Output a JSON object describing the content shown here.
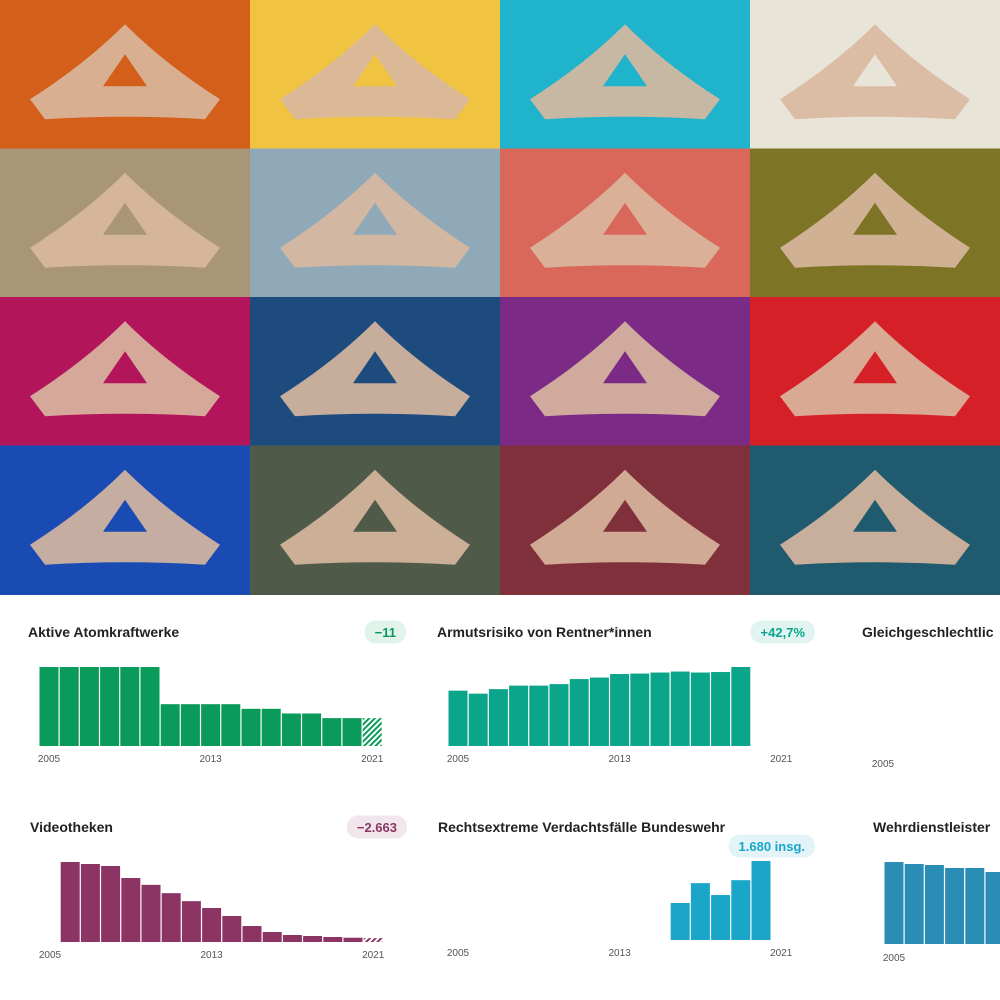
{
  "chart_data": [
    {
      "type": "bar",
      "title": "Aktive Atomkraftwerke",
      "badge": "−11",
      "categories": [
        "2005",
        null,
        null,
        null,
        null,
        null,
        null,
        null,
        "2013",
        null,
        null,
        null,
        null,
        null,
        null,
        null,
        "2021"
      ],
      "values": [
        17,
        17,
        17,
        17,
        17,
        17,
        9,
        9,
        9,
        9,
        8,
        8,
        7,
        7,
        6,
        6,
        6
      ],
      "color": "#0a9a5a",
      "ylim": [
        0,
        17
      ],
      "hatched_last": true
    },
    {
      "type": "bar",
      "title": "Armutsrisiko von Rentner*innen",
      "badge": "+42,7%",
      "categories": [
        "2005",
        null,
        null,
        null,
        null,
        null,
        null,
        null,
        "2013",
        null,
        null,
        null,
        null,
        null,
        null,
        null,
        "2021"
      ],
      "values": [
        11.0,
        10.4,
        11.3,
        12.0,
        12.0,
        12.3,
        13.3,
        13.6,
        14.3,
        14.4,
        14.6,
        14.8,
        14.6,
        14.7,
        15.7,
        null,
        null
      ],
      "color": "#0aa58a",
      "ylim": [
        0,
        15.7
      ]
    },
    {
      "type": "bar",
      "title": "Gleichgeschlechtlic",
      "categories": [
        "2005"
      ],
      "values": [
        null
      ]
    },
    {
      "type": "bar",
      "title": "Videotheken",
      "badge": "−2.663",
      "categories": [
        "2005",
        null,
        null,
        null,
        null,
        null,
        null,
        null,
        "2013",
        null,
        null,
        null,
        null,
        null,
        null,
        null,
        "2021"
      ],
      "values": [
        null,
        2800,
        2730,
        2660,
        2240,
        2000,
        1710,
        1430,
        1190,
        910,
        560,
        350,
        245,
        210,
        175,
        150,
        137
      ],
      "color": "#8c3565",
      "ylim": [
        0,
        2800
      ],
      "hatched_last": true
    },
    {
      "type": "bar",
      "title": "Rechtsextreme Verdachtsfälle Bundeswehr",
      "badge": "1.680 insg.",
      "categories": [
        "2005",
        null,
        null,
        null,
        null,
        null,
        null,
        null,
        "2013",
        null,
        null,
        null,
        null,
        null,
        null,
        null,
        "2021"
      ],
      "values": [
        null,
        null,
        null,
        null,
        null,
        null,
        null,
        null,
        null,
        null,
        null,
        224,
        344,
        272,
        362,
        478,
        null
      ],
      "color": "#1ba6c9",
      "ylim": [
        0,
        478
      ]
    },
    {
      "type": "bar",
      "title": "Wehrdienstleister",
      "categories": [
        "2005",
        null,
        null,
        null,
        null,
        null
      ],
      "values": [
        82,
        80,
        79,
        76,
        76,
        72
      ],
      "color": "#2a8db5",
      "ylim": [
        0,
        82
      ]
    }
  ]
}
